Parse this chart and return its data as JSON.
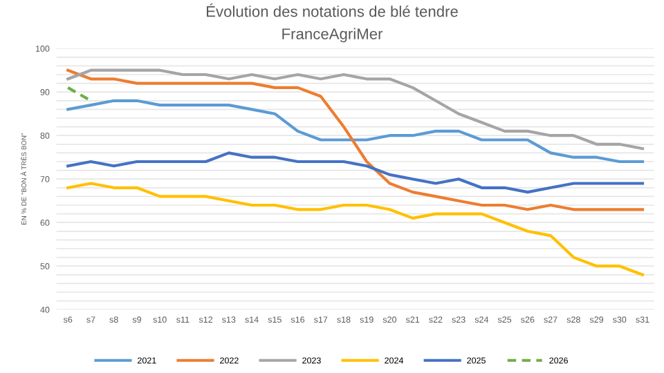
{
  "chart_data": {
    "type": "line",
    "title": "Évolution des notations de blé tendre",
    "subtitle": "FranceAgriMer",
    "ylabel": "EN % DE \"BON À TRÈS BON\"",
    "categories": [
      "s6",
      "s7",
      "s8",
      "s9",
      "s10",
      "s11",
      "s12",
      "s13",
      "s14",
      "s15",
      "s16",
      "s17",
      "s18",
      "s19",
      "s20",
      "s21",
      "s22",
      "s23",
      "s24",
      "s25",
      "s26",
      "s27",
      "s28",
      "s29",
      "s30",
      "s31"
    ],
    "series": [
      {
        "name": "2021",
        "color": "#5b9bd5",
        "values": [
          86,
          87,
          88,
          88,
          87,
          87,
          87,
          87,
          86,
          85,
          81,
          79,
          79,
          79,
          80,
          80,
          81,
          81,
          79,
          79,
          79,
          76,
          75,
          75,
          74,
          74
        ]
      },
      {
        "name": "2022",
        "color": "#ed7d31",
        "values": [
          95,
          93,
          93,
          92,
          92,
          92,
          92,
          92,
          92,
          91,
          91,
          89,
          82,
          74,
          69,
          67,
          66,
          65,
          64,
          64,
          63,
          64,
          63,
          63,
          63,
          63
        ]
      },
      {
        "name": "2023",
        "color": "#a5a5a5",
        "values": [
          93,
          95,
          95,
          95,
          95,
          94,
          94,
          93,
          94,
          93,
          94,
          93,
          94,
          93,
          93,
          91,
          88,
          85,
          83,
          81,
          81,
          80,
          80,
          78,
          78,
          77
        ]
      },
      {
        "name": "2024",
        "color": "#ffc000",
        "values": [
          68,
          69,
          68,
          68,
          66,
          66,
          66,
          65,
          64,
          64,
          63,
          63,
          64,
          64,
          63,
          61,
          62,
          62,
          62,
          60,
          58,
          57,
          52,
          50,
          50,
          48
        ]
      },
      {
        "name": "2025",
        "color": "#4472c4",
        "values": [
          73,
          74,
          73,
          74,
          74,
          74,
          74,
          76,
          75,
          75,
          74,
          74,
          74,
          73,
          71,
          70,
          69,
          70,
          68,
          68,
          67,
          68,
          69,
          69,
          69,
          69
        ]
      },
      {
        "name": "2026",
        "color": "#70ad47",
        "line_style": "dashed",
        "values": [
          91,
          88,
          null,
          null,
          null,
          null,
          null,
          null,
          null,
          null,
          null,
          null,
          null,
          null,
          null,
          null,
          null,
          null,
          null,
          null,
          null,
          null,
          null,
          null,
          null,
          null
        ]
      }
    ],
    "ylim": [
      40,
      100
    ],
    "yticks": [
      40,
      {
        "value": 42,
        "label": null
      },
      {
        "value": 44,
        "label": null
      },
      {
        "value": 46,
        "label": null
      },
      {
        "value": 48,
        "label": null
      },
      50,
      {
        "value": 52,
        "label": null
      },
      {
        "value": 54,
        "label": null
      },
      {
        "value": 56,
        "label": null
      },
      {
        "value": 58,
        "label": null
      },
      60,
      {
        "value": 62,
        "label": null
      },
      {
        "value": 64,
        "label": null
      },
      {
        "value": 66,
        "label": null
      },
      {
        "value": 68,
        "label": null
      },
      70,
      {
        "value": 72,
        "label": null
      },
      {
        "value": 74,
        "label": null
      },
      {
        "value": 76,
        "label": null
      },
      {
        "value": 78,
        "label": null
      },
      80,
      {
        "value": 82,
        "label": null
      },
      {
        "value": 84,
        "label": null
      },
      {
        "value": 86,
        "label": null
      },
      {
        "value": 88,
        "label": null
      },
      90,
      {
        "value": 92,
        "label": null
      },
      {
        "value": 94,
        "label": null
      },
      {
        "value": 96,
        "label": null
      },
      {
        "value": 98,
        "label": null
      },
      100
    ],
    "grid": "y",
    "legend": "bottom",
    "marker": "none",
    "line_style": "solid"
  }
}
